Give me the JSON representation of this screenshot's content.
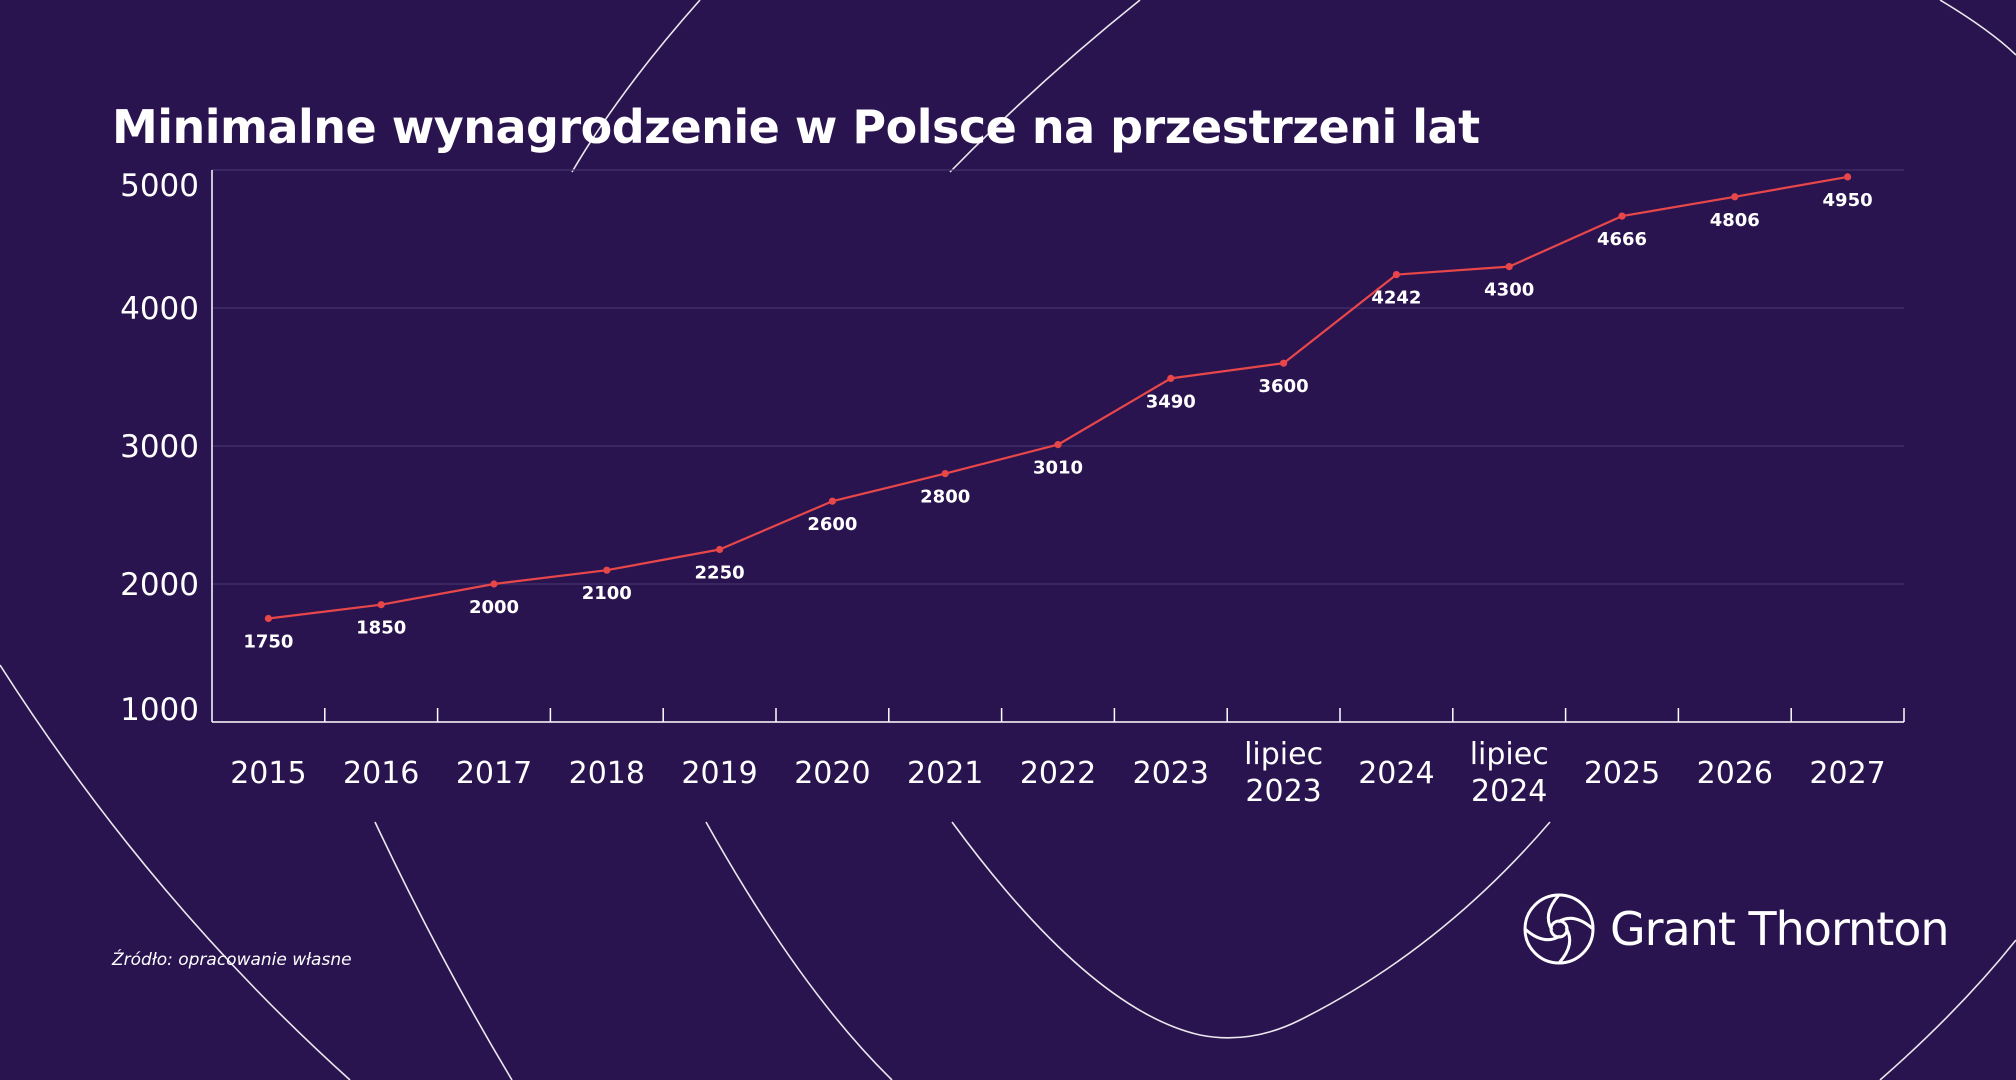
{
  "colors": {
    "background": "#2a1450",
    "line": "#e8474a",
    "text": "#ffffff",
    "grid": "#45306a"
  },
  "source_text": "Źródło: opracowanie własne",
  "logo": {
    "text": "Grant Thornton",
    "icon": "grant-thornton-logo-icon"
  },
  "chart_data": {
    "type": "line",
    "title": "Minimalne wynagrodzenie w Polsce na przestrzeni lat",
    "xlabel": "",
    "ylabel": "",
    "categories": [
      "2015",
      "2016",
      "2017",
      "2018",
      "2019",
      "2020",
      "2021",
      "2022",
      "2023",
      "lipiec 2023",
      "2024",
      "lipiec 2024",
      "2025",
      "2026",
      "2027"
    ],
    "values": [
      1750,
      1850,
      2000,
      2100,
      2250,
      2600,
      2800,
      3010,
      3490,
      3600,
      4242,
      4300,
      4666,
      4806,
      4950
    ],
    "ylim": [
      1000,
      5000
    ],
    "yticks": [
      "1000",
      "2000",
      "3000",
      "4000",
      "5000"
    ],
    "grid": true,
    "legend": "none"
  }
}
